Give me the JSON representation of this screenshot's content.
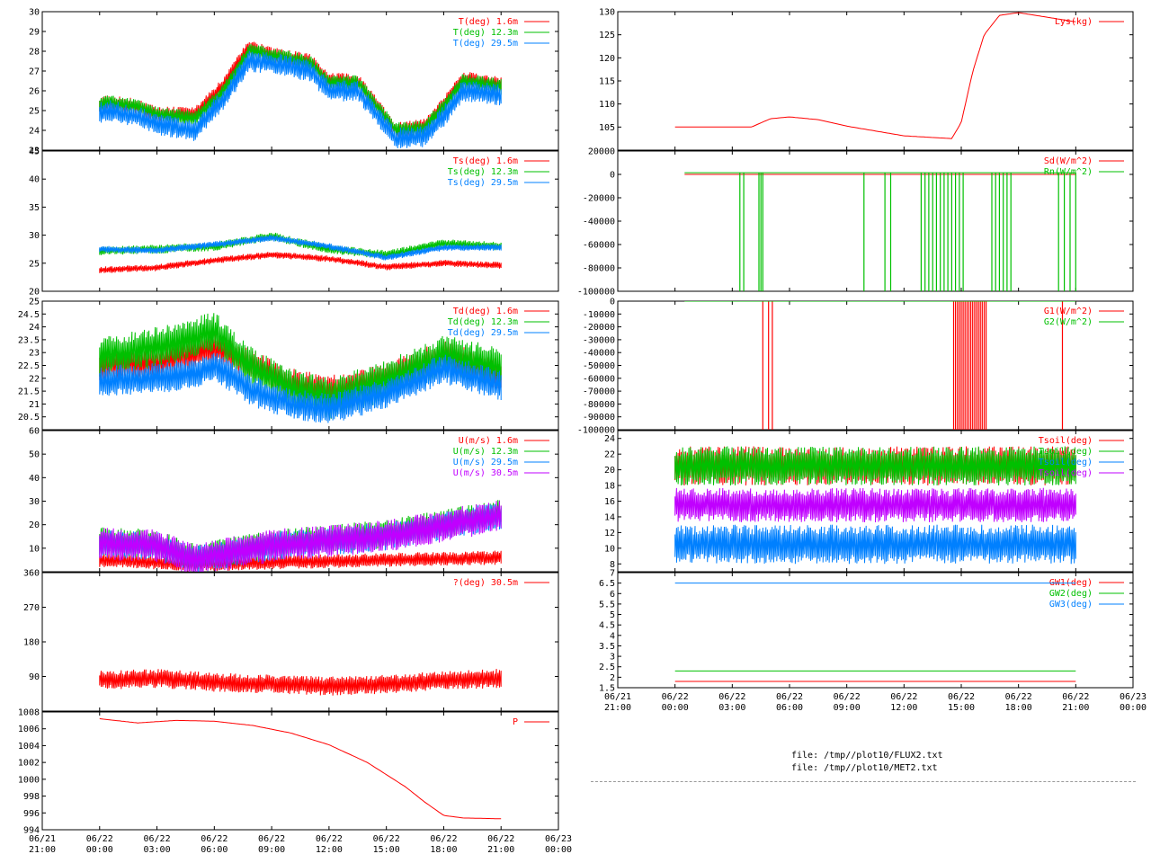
{
  "colors": {
    "red": "#ff0000",
    "green": "#00c000",
    "blue": "#0080ff",
    "magenta": "#c000ff"
  },
  "footer": {
    "files": [
      "file: /tmp//plot10/FLUX2.txt",
      "file: /tmp//plot10/MET2.txt"
    ]
  },
  "chart_data": [
    {
      "type": "line",
      "yticks": [
        "23",
        "24",
        "25",
        "26",
        "27",
        "28",
        "29",
        "30"
      ],
      "ylim": [
        23,
        30
      ],
      "x_ticks": [
        "06/21 21:00",
        "06/22 00:00",
        "06/22 03:00",
        "06/22 06:00",
        "06/22 09:00",
        "06/22 12:00",
        "06/22 15:00",
        "06/22 18:00",
        "06/22 21:00",
        "06/23 00:00"
      ],
      "series": [
        {
          "name": "T(deg)  1.6m",
          "color": "red",
          "x": [
            3,
            3.5,
            5,
            6,
            8,
            9.5,
            10.8,
            12,
            14,
            15,
            16.5,
            18.5,
            20,
            21,
            22,
            24
          ],
          "values": [
            25.3,
            25.4,
            25.2,
            24.8,
            24.8,
            26.3,
            28.2,
            27.8,
            27.5,
            26.5,
            26.5,
            24.0,
            24.2,
            25.3,
            26.6,
            26.3
          ],
          "band": 0.4
        },
        {
          "name": "T(deg) 12.3m",
          "color": "green",
          "x": [
            3,
            3.5,
            5,
            6,
            8,
            9.5,
            10.8,
            12,
            14,
            15,
            16.5,
            18.5,
            20,
            21,
            22,
            24
          ],
          "values": [
            25.3,
            25.4,
            25.2,
            24.8,
            24.6,
            26.0,
            28.0,
            27.8,
            27.4,
            26.4,
            26.4,
            24.0,
            24.1,
            25.2,
            26.5,
            26.2
          ],
          "band": 0.4
        },
        {
          "name": "T(deg) 29.5m",
          "color": "blue",
          "x": [
            3,
            3.5,
            5,
            6,
            8,
            9.5,
            10.8,
            12,
            14,
            15,
            16.5,
            18.5,
            20,
            21,
            22,
            24
          ],
          "values": [
            24.9,
            25.0,
            24.7,
            24.3,
            24.0,
            25.6,
            27.5,
            27.4,
            27.0,
            26.0,
            26.0,
            23.6,
            23.7,
            24.7,
            26.0,
            25.8
          ],
          "band": 0.55
        }
      ]
    },
    {
      "type": "line",
      "yticks": [
        "20",
        "25",
        "30",
        "35",
        "40",
        "45"
      ],
      "ylim": [
        20,
        45
      ],
      "x_ticks": [
        "06/21 21:00",
        "06/22 00:00",
        "06/22 03:00",
        "06/22 06:00",
        "06/22 09:00",
        "06/22 12:00",
        "06/22 15:00",
        "06/22 18:00",
        "06/22 21:00",
        "06/23 00:00"
      ],
      "series": [
        {
          "name": "Ts(deg)  1.6m",
          "color": "red",
          "x": [
            3,
            6,
            9,
            12,
            15,
            18,
            21,
            24
          ],
          "values": [
            23.8,
            24.2,
            25.5,
            26.5,
            25.8,
            24.3,
            25.0,
            24.6
          ],
          "band": 0.6
        },
        {
          "name": "Ts(deg) 12.3m",
          "color": "green",
          "x": [
            3,
            6,
            9,
            12,
            15,
            18,
            21,
            24
          ],
          "values": [
            27.2,
            27.5,
            28.0,
            29.8,
            27.5,
            26.5,
            28.5,
            28.0
          ],
          "band": 0.8
        },
        {
          "name": "Ts(deg) 29.5m",
          "color": "blue",
          "x": [
            3,
            6,
            9,
            12,
            15,
            18,
            21,
            24
          ],
          "values": [
            27.5,
            27.3,
            28.3,
            29.5,
            28.0,
            26.0,
            27.8,
            27.8
          ],
          "band": 0.6
        }
      ]
    },
    {
      "type": "line",
      "yticks": [
        "20.5",
        "21",
        "21.5",
        "22",
        "22.5",
        "23",
        "23.5",
        "24",
        "24.5",
        "25"
      ],
      "ylim": [
        20,
        25
      ],
      "x_ticks": [
        "06/21 21:00",
        "06/22 00:00",
        "06/22 03:00",
        "06/22 06:00",
        "06/22 09:00",
        "06/22 12:00",
        "06/22 15:00",
        "06/22 18:00",
        "06/22 21:00",
        "06/23 00:00"
      ],
      "series": [
        {
          "name": "Td(deg)  1.6m",
          "color": "red",
          "x": [
            3,
            6,
            8,
            9,
            11,
            13,
            15,
            18,
            21,
            24
          ],
          "values": [
            22.5,
            22.6,
            23.0,
            23.2,
            22.5,
            21.8,
            21.5,
            22.0,
            22.9,
            22.1
          ],
          "band": 0.6
        },
        {
          "name": "Td(deg) 12.3m",
          "color": "green",
          "x": [
            3,
            6,
            8,
            9,
            11,
            13,
            15,
            18,
            21,
            24
          ],
          "values": [
            22.8,
            23.2,
            23.6,
            23.8,
            22.4,
            21.6,
            21.2,
            21.9,
            22.9,
            22.4
          ],
          "band": 0.8
        },
        {
          "name": "Td(deg) 29.5m",
          "color": "blue",
          "x": [
            3,
            6,
            8,
            9,
            11,
            13,
            15,
            18,
            21,
            24
          ],
          "values": [
            21.9,
            22.0,
            22.2,
            22.5,
            21.5,
            21.0,
            20.8,
            21.4,
            22.4,
            21.7
          ],
          "band": 0.6
        }
      ]
    },
    {
      "type": "line",
      "yticks": [
        "10",
        "20",
        "30",
        "40",
        "50",
        "60"
      ],
      "ylim": [
        0,
        60
      ],
      "x_ticks": [
        "06/21 21:00",
        "06/22 00:00",
        "06/22 03:00",
        "06/22 06:00",
        "06/22 09:00",
        "06/22 12:00",
        "06/22 15:00",
        "06/22 18:00",
        "06/22 21:00",
        "06/23 00:00"
      ],
      "series": [
        {
          "name": "U(m/s)  1.6m",
          "color": "red",
          "x": [
            3,
            6,
            8,
            12,
            18,
            24
          ],
          "values": [
            5,
            4,
            3,
            4,
            5,
            6
          ],
          "band": 3
        },
        {
          "name": "U(m/s) 12.3m",
          "color": "green",
          "x": [
            3,
            6,
            8,
            12,
            18,
            24
          ],
          "values": [
            13,
            12,
            6,
            12,
            16,
            25
          ],
          "band": 6
        },
        {
          "name": "U(m/s) 29.5m",
          "color": "blue",
          "x": [
            3,
            6,
            8,
            12,
            18,
            24
          ],
          "values": [
            12,
            11,
            5,
            11,
            15,
            24
          ],
          "band": 6
        },
        {
          "name": "U(m/s) 30.5m",
          "color": "magenta",
          "x": [
            3,
            6,
            8,
            12,
            18,
            24
          ],
          "values": [
            12,
            11,
            5,
            11,
            15,
            24
          ],
          "band": 7
        }
      ]
    },
    {
      "type": "line",
      "yticks": [
        "90",
        "180",
        "270",
        "360"
      ],
      "ylim": [
        0,
        360
      ],
      "x_ticks": [
        "06/21 21:00",
        "06/22 00:00",
        "06/22 03:00",
        "06/22 06:00",
        "06/22 09:00",
        "06/22 12:00",
        "06/22 15:00",
        "06/22 18:00",
        "06/22 21:00",
        "06/23 00:00"
      ],
      "series": [
        {
          "name": "?(deg)  30.5m",
          "color": "red",
          "x": [
            3,
            6,
            9,
            12,
            15,
            18,
            21,
            24
          ],
          "values": [
            80,
            85,
            75,
            70,
            65,
            70,
            80,
            85
          ],
          "band": 25
        }
      ]
    },
    {
      "type": "line",
      "yticks": [
        "994",
        "996",
        "998",
        "1000",
        "1002",
        "1004",
        "1006",
        "1008"
      ],
      "ylim": [
        994,
        1008
      ],
      "x_ticks": [
        "06/21 21:00",
        "06/22 00:00",
        "06/22 03:00",
        "06/22 06:00",
        "06/22 09:00",
        "06/22 12:00",
        "06/22 15:00",
        "06/22 18:00",
        "06/22 21:00",
        "06/23 00:00"
      ],
      "series": [
        {
          "name": "P",
          "color": "red",
          "x": [
            3,
            5,
            7,
            9,
            11,
            13,
            15,
            17,
            19,
            20,
            21,
            22,
            24
          ],
          "values": [
            1007.2,
            1006.7,
            1007.0,
            1006.9,
            1006.4,
            1005.5,
            1004.1,
            1002.0,
            999.1,
            997.3,
            995.7,
            995.4,
            995.3
          ]
        }
      ]
    },
    {
      "type": "line",
      "yticks": [
        "105",
        "110",
        "115",
        "120",
        "125",
        "130"
      ],
      "ylim": [
        100,
        130
      ],
      "x_ticks": [
        "06/21 21:00",
        "06/22 00:00",
        "06/22 03:00",
        "06/22 06:00",
        "06/22 09:00",
        "06/22 12:00",
        "06/22 15:00",
        "06/22 18:00",
        "06/22 21:00",
        "06/23 00:00"
      ],
      "series": [
        {
          "name": "Lys(kg)",
          "color": "red",
          "x": [
            3,
            7,
            8,
            9,
            10.5,
            12,
            15,
            17.5,
            18,
            18.6,
            19.2,
            20,
            21,
            24
          ],
          "values": [
            105,
            105,
            106.8,
            107.2,
            106.6,
            105.2,
            103.1,
            102.5,
            106,
            117,
            125,
            129.2,
            129.8,
            127.8
          ]
        }
      ]
    },
    {
      "type": "line",
      "yticks": [
        "-100000",
        "-80000",
        "-60000",
        "-40000",
        "-20000",
        "0",
        "20000"
      ],
      "ylim": [
        -100000,
        20000
      ],
      "x_ticks": [
        "06/21 21:00",
        "06/22 00:00",
        "06/22 03:00",
        "06/22 06:00",
        "06/22 09:00",
        "06/22 12:00",
        "06/22 15:00",
        "06/22 18:00",
        "06/22 21:00",
        "06/23 00:00"
      ],
      "series": [
        {
          "name": "Sd(W/m^2)",
          "color": "red",
          "x": [
            3.5,
            24
          ],
          "values": [
            0,
            0
          ]
        },
        {
          "name": "Rn(W/m^2)",
          "color": "green",
          "x": [
            3.5,
            24
          ],
          "values": [
            1500,
            1500
          ],
          "spikes": [
            6.4,
            6.6,
            7.4,
            7.5,
            7.6,
            12.9,
            14.0,
            14.3,
            15.9,
            16.1,
            16.3,
            16.5,
            16.7,
            16.9,
            17.1,
            17.3,
            17.5,
            17.7,
            17.9,
            18.1,
            19.6,
            19.8,
            20.0,
            20.2,
            20.4,
            20.6,
            23.1,
            23.4,
            23.7,
            24.0
          ]
        }
      ]
    },
    {
      "type": "line",
      "yticks": [
        "-100000",
        "-90000",
        "-80000",
        "-70000",
        "-60000",
        "-50000",
        "-40000",
        "-30000",
        "-20000",
        "-10000",
        "0"
      ],
      "ylim": [
        -100000,
        0
      ],
      "x_ticks": [
        "06/21 21:00",
        "06/22 00:00",
        "06/22 03:00",
        "06/22 06:00",
        "06/22 09:00",
        "06/22 12:00",
        "06/22 15:00",
        "06/22 18:00",
        "06/22 21:00",
        "06/23 00:00"
      ],
      "series": [
        {
          "name": "G1(W/m^2)",
          "color": "red",
          "x": [
            3.5,
            24
          ],
          "values": [
            0,
            0
          ],
          "spikes": [
            7.6,
            7.9,
            8.1,
            17.6,
            17.7,
            17.8,
            17.9,
            18.0,
            18.1,
            18.2,
            18.3,
            18.4,
            18.5,
            18.6,
            18.7,
            18.8,
            18.9,
            19.0,
            19.1,
            19.2,
            19.3,
            23.3
          ]
        },
        {
          "name": "G2(W/m^2)",
          "color": "green",
          "x": [
            3.5,
            24
          ],
          "values": [
            0,
            0
          ]
        }
      ]
    },
    {
      "type": "line",
      "yticks": [
        "8",
        "10",
        "12",
        "14",
        "16",
        "18",
        "20",
        "22",
        "24"
      ],
      "ylim": [
        7,
        25
      ],
      "x_ticks": [
        "06/21 21:00",
        "06/22 00:00",
        "06/22 03:00",
        "06/22 06:00",
        "06/22 09:00",
        "06/22 12:00",
        "06/22 15:00",
        "06/22 18:00",
        "06/22 21:00",
        "06/23 00:00"
      ],
      "series": [
        {
          "name": "Tsoil(deg)",
          "color": "red",
          "x": [
            3,
            24
          ],
          "values": [
            20.5,
            20.5
          ],
          "band": 2.5
        },
        {
          "name": "Tsoil(deg)",
          "color": "green",
          "x": [
            3,
            24
          ],
          "values": [
            20.5,
            20.5
          ],
          "band": 2.5
        },
        {
          "name": "Tsoil(deg)",
          "color": "blue",
          "x": [
            3,
            24
          ],
          "values": [
            10.5,
            10.5
          ],
          "band": 2.5
        },
        {
          "name": "Tsoil(deg)",
          "color": "magenta",
          "x": [
            3,
            24
          ],
          "values": [
            15.5,
            15.5
          ],
          "band": 2.2
        }
      ]
    },
    {
      "type": "line",
      "yticks": [
        "1.5",
        "2",
        "2.5",
        "3",
        "3.5",
        "4",
        "4.5",
        "5",
        "5.5",
        "6",
        "6.5",
        "7"
      ],
      "ylim": [
        1.5,
        7
      ],
      "x_ticks": [
        "06/21 21:00",
        "06/22 00:00",
        "06/22 03:00",
        "06/22 06:00",
        "06/22 09:00",
        "06/22 12:00",
        "06/22 15:00",
        "06/22 18:00",
        "06/22 21:00",
        "06/23 00:00"
      ],
      "series": [
        {
          "name": "GW1(deg)",
          "color": "red",
          "x": [
            3,
            24
          ],
          "values": [
            1.8,
            1.8
          ]
        },
        {
          "name": "GW2(deg)",
          "color": "green",
          "x": [
            3,
            24
          ],
          "values": [
            2.3,
            2.3
          ]
        },
        {
          "name": "GW3(deg)",
          "color": "blue",
          "x": [
            3,
            24
          ],
          "values": [
            6.5,
            6.5
          ]
        }
      ]
    }
  ]
}
